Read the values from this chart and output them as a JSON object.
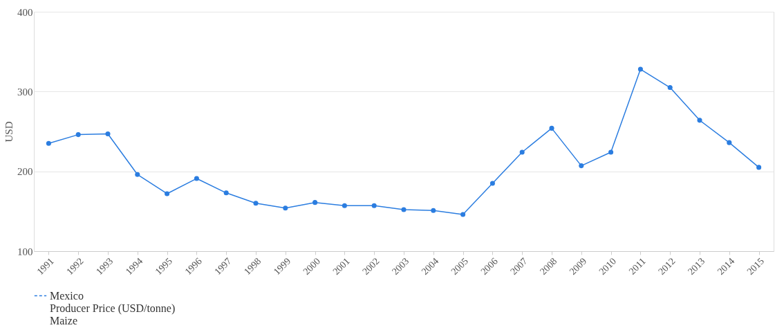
{
  "chart_data": {
    "type": "line",
    "ylabel": "USD",
    "categories": [
      "1991",
      "1992",
      "1993",
      "1994",
      "1995",
      "1996",
      "1997",
      "1998",
      "1999",
      "2000",
      "2001",
      "2002",
      "2003",
      "2004",
      "2005",
      "2006",
      "2007",
      "2008",
      "2009",
      "2010",
      "2011",
      "2012",
      "2013",
      "2014",
      "2015"
    ],
    "series": [
      {
        "name": "Mexico\nProducer Price (USD/tonne)\nMaize",
        "color": "#2b7de0",
        "values": [
          235,
          246,
          247,
          196,
          172,
          191,
          173,
          160,
          154,
          161,
          157,
          157,
          152,
          151,
          146,
          185,
          224,
          254,
          207,
          224,
          328,
          305,
          264,
          236,
          205
        ]
      }
    ],
    "ylim": [
      100,
      400
    ],
    "yticks": [
      100,
      200,
      300,
      400
    ],
    "grid": "y",
    "legend": "bottom",
    "marker": "circle",
    "line_style": "solid"
  }
}
